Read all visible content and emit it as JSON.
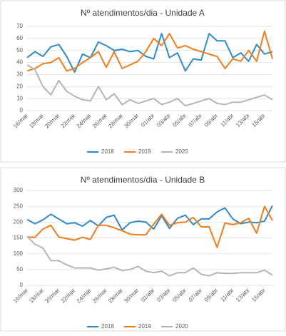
{
  "chart_data": [
    {
      "type": "line",
      "title": "Nº atendimentos/dia - Unidade A",
      "categories": [
        "16/mar",
        null,
        "18/mar",
        null,
        "20/mar",
        null,
        "22/mar",
        null,
        "24/mar",
        null,
        "26/mar",
        null,
        "28/mar",
        null,
        "30/mar",
        null,
        "01/abr",
        null,
        "03/abr",
        null,
        "05/abr",
        null,
        "07/abr",
        null,
        "09/abr",
        null,
        "11/abr",
        null,
        "13/abr",
        null,
        "15/abr",
        null
      ],
      "series": [
        {
          "name": "2018",
          "color": "#2e8bc9",
          "values": [
            44,
            49,
            45,
            53,
            55,
            45,
            32,
            47,
            44,
            57,
            54,
            50,
            51,
            49,
            50,
            45,
            43,
            64,
            44,
            48,
            33,
            43,
            42,
            64,
            58,
            58,
            44,
            48,
            41,
            55,
            47,
            49
          ]
        },
        {
          "name": "2019",
          "color": "#f07c1c",
          "values": [
            33,
            35,
            39,
            40,
            44,
            33,
            35,
            40,
            44,
            49,
            36,
            49,
            35,
            38,
            41,
            49,
            60,
            54,
            64,
            52,
            54,
            51,
            49,
            47,
            45,
            35,
            43,
            41,
            50,
            41,
            66,
            43
          ]
        },
        {
          "name": "2020",
          "color": "#b5b5b5",
          "values": [
            38,
            34,
            20,
            13,
            25,
            16,
            12,
            9,
            8,
            20,
            9,
            14,
            5,
            9,
            6,
            8,
            10,
            5,
            7,
            10,
            4,
            6,
            8,
            10,
            6,
            5,
            7,
            7,
            9,
            11,
            13,
            9
          ]
        }
      ],
      "ylim": [
        0,
        70
      ],
      "yticks": [
        0,
        10,
        20,
        30,
        40,
        50,
        60,
        70
      ],
      "grid": true,
      "legend": "bottom"
    },
    {
      "type": "line",
      "title": "Nº atendimentos/dia - Unidade B",
      "categories": [
        "16/mar",
        null,
        "18/mar",
        null,
        "20/mar",
        null,
        "22/mar",
        null,
        "24/mar",
        null,
        "26/mar",
        null,
        "28/mar",
        null,
        "30/mar",
        null,
        "01/abr",
        null,
        "03/abr",
        null,
        "05/abr",
        null,
        "07/abr",
        null,
        "09/abr",
        null,
        "11/abr",
        null,
        "13/abr",
        null,
        "15/abr",
        null
      ],
      "series": [
        {
          "name": "2018",
          "color": "#2e8bc9",
          "values": [
            208,
            195,
            207,
            225,
            210,
            195,
            198,
            187,
            205,
            188,
            215,
            222,
            175,
            198,
            203,
            200,
            178,
            220,
            180,
            212,
            222,
            192,
            210,
            210,
            232,
            245,
            210,
            195,
            200,
            198,
            203,
            252
          ]
        },
        {
          "name": "2019",
          "color": "#f07c1c",
          "values": [
            153,
            152,
            178,
            190,
            153,
            148,
            143,
            152,
            145,
            190,
            190,
            182,
            173,
            162,
            160,
            160,
            193,
            225,
            190,
            198,
            200,
            215,
            185,
            185,
            120,
            197,
            192,
            198,
            212,
            165,
            250,
            205
          ]
        },
        {
          "name": "2020",
          "color": "#b5b5b5",
          "values": [
            155,
            130,
            118,
            78,
            78,
            65,
            55,
            55,
            55,
            48,
            52,
            57,
            47,
            50,
            60,
            45,
            40,
            45,
            30,
            40,
            40,
            55,
            35,
            30,
            40,
            38,
            38,
            40,
            40,
            40,
            48,
            32
          ]
        }
      ],
      "ylim": [
        0,
        300
      ],
      "yticks": [
        0,
        50,
        100,
        150,
        200,
        250,
        300
      ],
      "grid": true,
      "legend": "bottom"
    }
  ]
}
